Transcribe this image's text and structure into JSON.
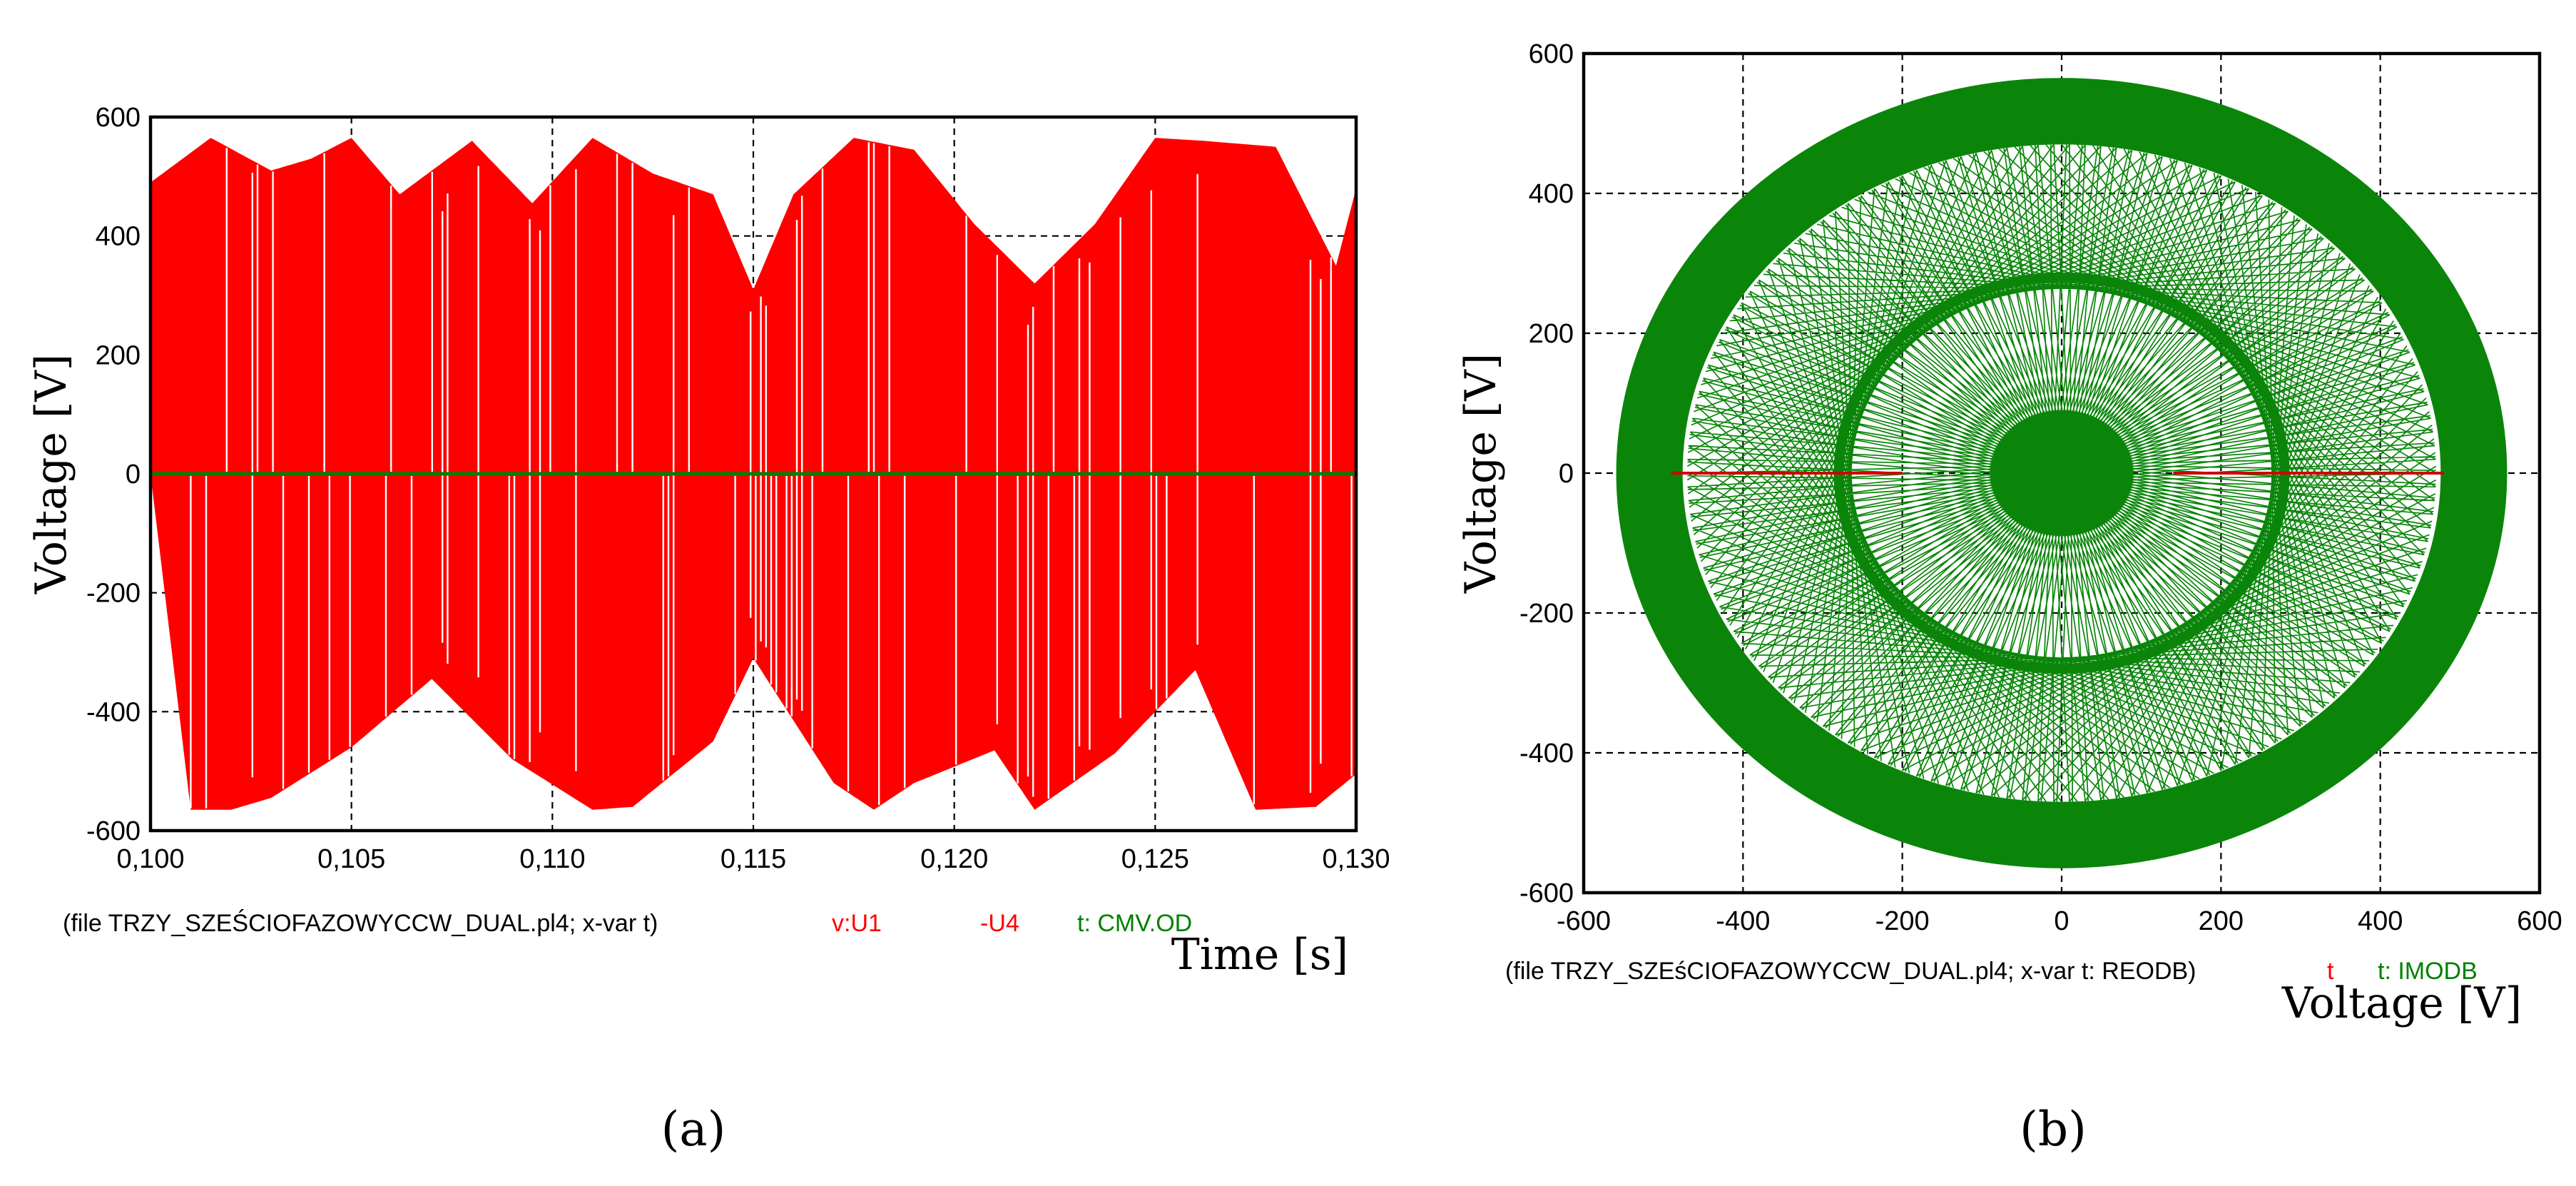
{
  "chart_data": [
    {
      "type": "line",
      "panel": "a",
      "caption": "(a)",
      "xlabel": "Time [s]",
      "ylabel": "Voltage [V]",
      "xlim": [
        0.1,
        0.13
      ],
      "ylim": [
        -600,
        600
      ],
      "x_ticks": [
        "0,100",
        "0,105",
        "0,110",
        "0,115",
        "0,120",
        "0,125",
        "0,130"
      ],
      "y_ticks": [
        "600",
        "400",
        "200",
        "0",
        "-200",
        "-400",
        "-600"
      ],
      "grid": true,
      "footer": {
        "file": "(file TRZY_SZEŚCIOFAZOWYCCW_DUAL.pl4; x-var t)",
        "legend": [
          {
            "label": "v:U1",
            "color": "#ff0000"
          },
          {
            "label": "-U4",
            "color": "#ff0000"
          },
          {
            "label": "t: CMV.OD",
            "color": "#008000"
          }
        ]
      },
      "series": [
        {
          "name": "v:U1 -U4",
          "color": "#ff0000",
          "style": "PWM switching between upper and lower envelopes",
          "upper_envelope": {
            "x": [
              0.1,
              0.1015,
              0.103,
              0.104,
              0.105,
              0.1062,
              0.108,
              0.1095,
              0.111,
              0.1125,
              0.114,
              0.115,
              0.116,
              0.1175,
              0.119,
              0.1205,
              0.122,
              0.1235,
              0.125,
              0.1262,
              0.128,
              0.1295,
              0.13
            ],
            "y": [
              490,
              565,
              510,
              530,
              565,
              470,
              560,
              455,
              565,
              505,
              470,
              310,
              470,
              565,
              545,
              420,
              320,
              420,
              565,
              560,
              550,
              350,
              480
            ]
          },
          "lower_envelope": {
            "x": [
              0.1,
              0.101,
              0.102,
              0.103,
              0.105,
              0.107,
              0.109,
              0.111,
              0.112,
              0.114,
              0.115,
              0.117,
              0.118,
              0.119,
              0.121,
              0.122,
              0.124,
              0.126,
              0.1275,
              0.129,
              0.13
            ],
            "y": [
              0,
              -565,
              -565,
              -545,
              -460,
              -345,
              -480,
              -565,
              -560,
              -450,
              -310,
              -520,
              -565,
              -520,
              -465,
              -565,
              -470,
              -330,
              -565,
              -560,
              -505
            ]
          }
        },
        {
          "name": "t: CMV.OD",
          "color": "#008000",
          "x": [
            0.1,
            0.13
          ],
          "y": [
            0,
            0
          ]
        }
      ]
    },
    {
      "type": "scatter",
      "panel": "b",
      "caption": "(b)",
      "xlabel": "Voltage [V]",
      "ylabel": "Voltage [V]",
      "xlim": [
        -600,
        600
      ],
      "ylim": [
        -600,
        600
      ],
      "x_ticks": [
        "-600",
        "-400",
        "-200",
        "0",
        "200",
        "400",
        "600"
      ],
      "y_ticks": [
        "600",
        "400",
        "200",
        "0",
        "-200",
        "-400",
        "-600"
      ],
      "grid": true,
      "footer": {
        "file": "(file TRZY_SZEśCIOFAZOWYCCW_DUAL.pl4; x-var t: REODB)",
        "legend": [
          {
            "label": "t",
            "color": "#ff0000"
          },
          {
            "label": "t: IMODB",
            "color": "#008000"
          }
        ]
      },
      "series": [
        {
          "name": "t: IMODB",
          "color": "#008000",
          "style": "space-vector trajectory: thick ring plus inner spokes",
          "outer_ring_radius": [
            470,
            565
          ],
          "inner_ring_radius": 280,
          "center_blob_radius": 90
        },
        {
          "name": "t",
          "color": "#ff0000",
          "x": [
            -490,
            -200,
            140,
            480
          ],
          "y": [
            0,
            0,
            0,
            0
          ]
        }
      ]
    }
  ]
}
